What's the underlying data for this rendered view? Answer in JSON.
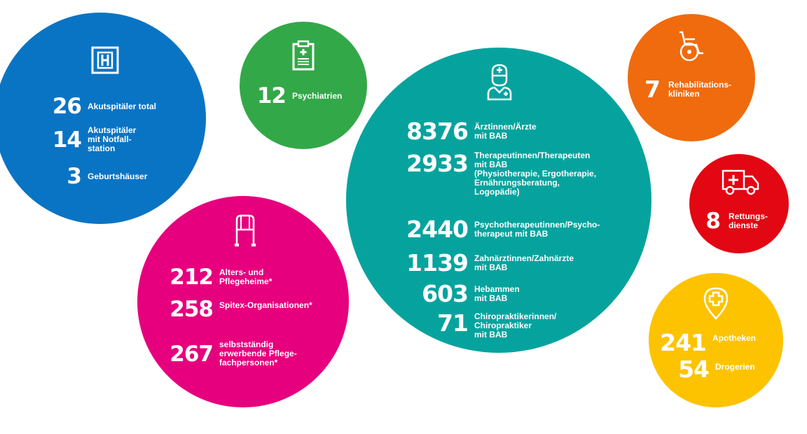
{
  "circles": {
    "spitaeler": {
      "color": "#0a74c4",
      "icon": "hospital-icon",
      "rows": [
        {
          "value": "26",
          "label": "Akutspitäler total"
        },
        {
          "value": "14",
          "label": "Akutspitäler\nmit Notfall-\nstation"
        },
        {
          "value": "3",
          "label": "Geburtshäuser"
        }
      ]
    },
    "psychiatrie": {
      "color": "#33a848",
      "icon": "clipboard-medical-icon",
      "rows": [
        {
          "value": "12",
          "label": "Psychiatrien"
        }
      ]
    },
    "fachpersonen": {
      "color": "#06a39e",
      "icon": "doctor-icon",
      "rows": [
        {
          "value": "8376",
          "label": "Ärztinnen/Ärzte\nmit BAB"
        },
        {
          "value": "2933",
          "label": "Therapeutinnen/Therapeuten\nmit BAB\n(Physiotherapie, Ergotherapie,\nErnährungsberatung,\nLogopädie)"
        },
        {
          "value": "2440",
          "label": "Psychotherapeutinnen/Psycho-\ntherapeut mit BAB"
        },
        {
          "value": "1139",
          "label": "Zahnärztinnen/Zahnärzte\nmit BAB"
        },
        {
          "value": "603",
          "label": "Hebammen\nmit BAB"
        },
        {
          "value": "71",
          "label": "Chiropraktikerinnen/\nChiropraktiker\nmit BAB"
        }
      ]
    },
    "pflege": {
      "color": "#e6007e",
      "icon": "walker-icon",
      "rows": [
        {
          "value": "212",
          "label": "Alters- und\nPflegeheime*"
        },
        {
          "value": "258",
          "label": "Spitex-Organisationen*"
        },
        {
          "value": "267",
          "label": "selbstständig\nerwerbende Pflege-\nfachpersonen*"
        }
      ]
    },
    "reha": {
      "color": "#ef6b0e",
      "icon": "wheelchair-icon",
      "rows": [
        {
          "value": "7",
          "label": "Rehabilitations-\nkliniken"
        }
      ]
    },
    "rettung": {
      "color": "#e30613",
      "icon": "ambulance-icon",
      "rows": [
        {
          "value": "8",
          "label": "Rettungs-\ndienste"
        }
      ]
    },
    "apotheken": {
      "color": "#fdc300",
      "icon": "location-cross-icon",
      "rows": [
        {
          "value": "241",
          "label": "Apotheken"
        },
        {
          "value": "54",
          "label": "Drogerien"
        }
      ]
    }
  }
}
